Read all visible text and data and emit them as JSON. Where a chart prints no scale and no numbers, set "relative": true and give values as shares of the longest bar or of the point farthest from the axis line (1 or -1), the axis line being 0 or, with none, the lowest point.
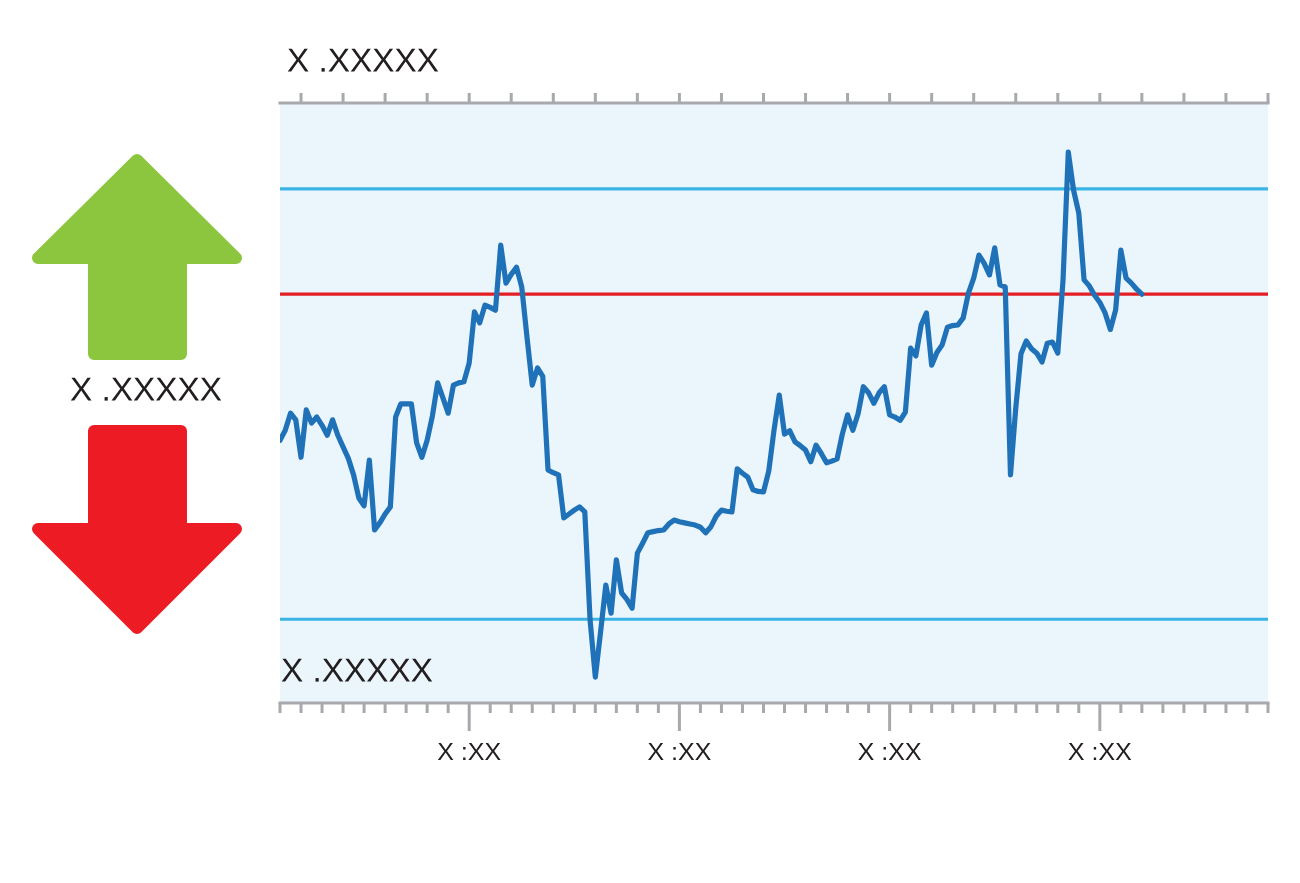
{
  "chart_data": {
    "type": "line",
    "relative": true,
    "color": "#1f72b8",
    "categories": [
      null,
      null,
      null,
      null,
      null,
      null,
      null,
      null,
      null,
      null,
      null,
      null,
      null,
      null,
      null,
      null,
      null,
      null,
      null,
      null,
      null,
      null,
      null,
      null,
      null,
      null,
      null,
      null,
      null,
      null,
      null,
      null,
      null,
      null,
      null,
      null,
      "X :XX",
      null,
      null,
      null,
      null,
      null,
      null,
      null,
      null,
      null,
      null,
      null,
      null,
      null,
      null,
      null,
      null,
      null,
      null,
      null,
      null,
      null,
      null,
      null,
      null,
      null,
      null,
      null,
      null,
      null,
      null,
      null,
      null,
      null,
      null,
      null,
      null,
      null,
      null,
      null,
      "X :XX",
      null,
      null,
      null,
      null,
      null,
      null,
      null,
      null,
      null,
      null,
      null,
      null,
      null,
      null,
      null,
      null,
      null,
      null,
      null,
      null,
      null,
      null,
      null,
      null,
      null,
      null,
      null,
      null,
      null,
      null,
      null,
      null,
      null,
      null,
      null,
      null,
      null,
      null,
      null,
      "X :XX",
      null,
      null,
      null,
      null,
      null,
      null,
      null,
      null,
      null,
      null,
      null,
      null,
      null,
      null,
      null,
      null,
      null,
      null,
      null,
      null,
      null,
      null,
      null,
      null,
      null,
      null,
      null,
      null,
      null,
      null,
      null,
      null,
      null,
      null,
      null,
      null,
      null,
      null,
      null,
      "X :XX",
      null,
      null,
      null,
      null,
      null,
      null,
      null,
      null,
      null,
      null,
      null,
      null,
      null,
      null,
      null,
      null,
      null,
      null,
      null,
      null,
      null,
      null,
      null,
      null,
      null,
      null,
      null,
      null,
      null,
      null,
      null,
      null
    ],
    "values": [
      0.477,
      0.495,
      0.526,
      0.514,
      0.446,
      0.532,
      0.508,
      0.519,
      0.504,
      0.486,
      0.514,
      0.486,
      0.465,
      0.444,
      0.414,
      0.372,
      0.358,
      0.441,
      0.314,
      0.327,
      0.343,
      0.356,
      0.519,
      0.543,
      0.543,
      0.543,
      0.472,
      0.446,
      0.477,
      0.521,
      0.581,
      0.554,
      0.526,
      0.577,
      0.581,
      0.583,
      0.617,
      0.71,
      0.69,
      0.722,
      0.718,
      0.713,
      0.831,
      0.762,
      0.778,
      0.791,
      0.755,
      0.664,
      0.577,
      0.608,
      0.593,
      0.423,
      0.418,
      0.414,
      0.336,
      0.343,
      0.35,
      0.356,
      0.347,
      0.151,
      0.047,
      0.129,
      0.214,
      0.163,
      0.26,
      0.2,
      0.188,
      0.172,
      0.272,
      0.29,
      0.309,
      0.311,
      0.313,
      0.314,
      0.325,
      0.332,
      0.329,
      0.327,
      0.325,
      0.323,
      0.319,
      0.309,
      0.32,
      0.339,
      0.35,
      0.348,
      0.347,
      0.425,
      0.417,
      0.41,
      0.387,
      0.384,
      0.383,
      0.421,
      0.495,
      0.559,
      0.488,
      0.494,
      0.474,
      0.467,
      0.459,
      0.438,
      0.468,
      0.453,
      0.436,
      0.439,
      0.443,
      0.488,
      0.523,
      0.495,
      0.525,
      0.574,
      0.563,
      0.544,
      0.563,
      0.574,
      0.523,
      0.519,
      0.513,
      0.528,
      0.644,
      0.63,
      0.686,
      0.708,
      0.613,
      0.636,
      0.65,
      0.682,
      0.685,
      0.686,
      0.699,
      0.744,
      0.771,
      0.813,
      0.798,
      0.777,
      0.826,
      0.759,
      0.755,
      0.414,
      0.535,
      0.634,
      0.657,
      0.643,
      0.635,
      0.619,
      0.653,
      0.655,
      0.635,
      0.768,
      1.0,
      0.931,
      0.889,
      0.768,
      0.757,
      0.74,
      0.727,
      0.708,
      0.678,
      0.713,
      0.822,
      0.771,
      0.762,
      0.751,
      0.742,
      null,
      null,
      null,
      null,
      null,
      null,
      null,
      null,
      null,
      null,
      null,
      null,
      null,
      null,
      null,
      null,
      null,
      null,
      null,
      null,
      null,
      null,
      null,
      null
    ],
    "tick_labels": "x",
    "ref_lines": [
      {
        "axis": "y",
        "value": 0.933,
        "color": "#3cb4e5"
      },
      {
        "axis": "y",
        "value": 0.742,
        "color": "#e31e24"
      },
      {
        "axis": "y",
        "value": 0.152,
        "color": "#3cb4e5"
      }
    ],
    "annotations": [
      "X .XXXXX",
      "X .XXXXX",
      "X .XXXXX"
    ]
  }
}
